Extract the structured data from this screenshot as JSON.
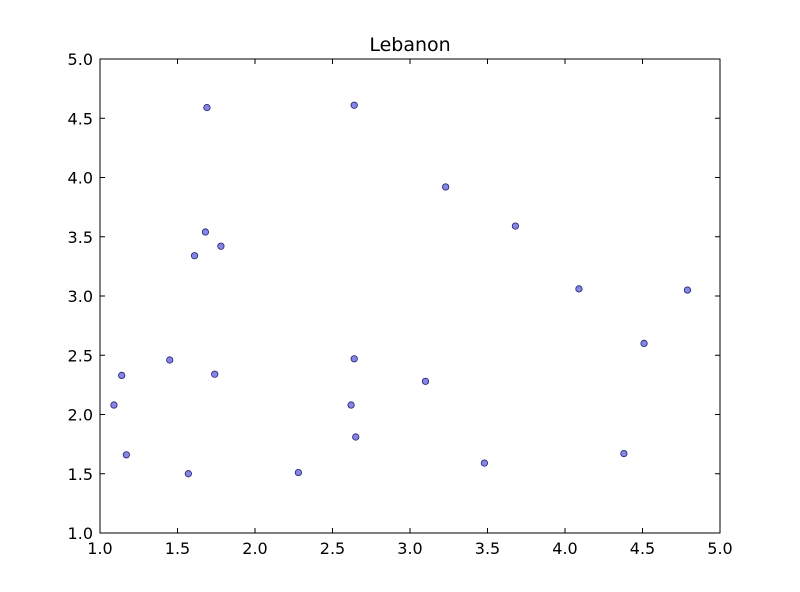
{
  "chart_data": {
    "type": "scatter",
    "title": "Lebanon",
    "xlabel": "",
    "ylabel": "",
    "xlim": [
      1.0,
      5.0
    ],
    "ylim": [
      1.0,
      5.0
    ],
    "x_ticks": [
      "1.0",
      "1.5",
      "2.0",
      "2.5",
      "3.0",
      "3.5",
      "4.0",
      "4.5",
      "5.0"
    ],
    "y_ticks": [
      "1.0",
      "1.5",
      "2.0",
      "2.5",
      "3.0",
      "3.5",
      "4.0",
      "4.5",
      "5.0"
    ],
    "grid": false,
    "marker_color": "#7070e0",
    "marker_edge_color": "#1f1f6f",
    "points": [
      {
        "x": 1.69,
        "y": 4.59
      },
      {
        "x": 2.64,
        "y": 4.61
      },
      {
        "x": 3.23,
        "y": 3.92
      },
      {
        "x": 3.68,
        "y": 3.59
      },
      {
        "x": 1.68,
        "y": 3.54
      },
      {
        "x": 1.78,
        "y": 3.42
      },
      {
        "x": 1.61,
        "y": 3.34
      },
      {
        "x": 4.09,
        "y": 3.06
      },
      {
        "x": 4.79,
        "y": 3.05
      },
      {
        "x": 4.51,
        "y": 2.6
      },
      {
        "x": 1.45,
        "y": 2.46
      },
      {
        "x": 2.64,
        "y": 2.47
      },
      {
        "x": 1.14,
        "y": 2.33
      },
      {
        "x": 1.74,
        "y": 2.34
      },
      {
        "x": 3.1,
        "y": 2.28
      },
      {
        "x": 1.09,
        "y": 2.08
      },
      {
        "x": 2.62,
        "y": 2.08
      },
      {
        "x": 2.65,
        "y": 1.81
      },
      {
        "x": 1.17,
        "y": 1.66
      },
      {
        "x": 4.38,
        "y": 1.67
      },
      {
        "x": 3.48,
        "y": 1.59
      },
      {
        "x": 1.57,
        "y": 1.5
      },
      {
        "x": 2.28,
        "y": 1.51
      }
    ]
  }
}
